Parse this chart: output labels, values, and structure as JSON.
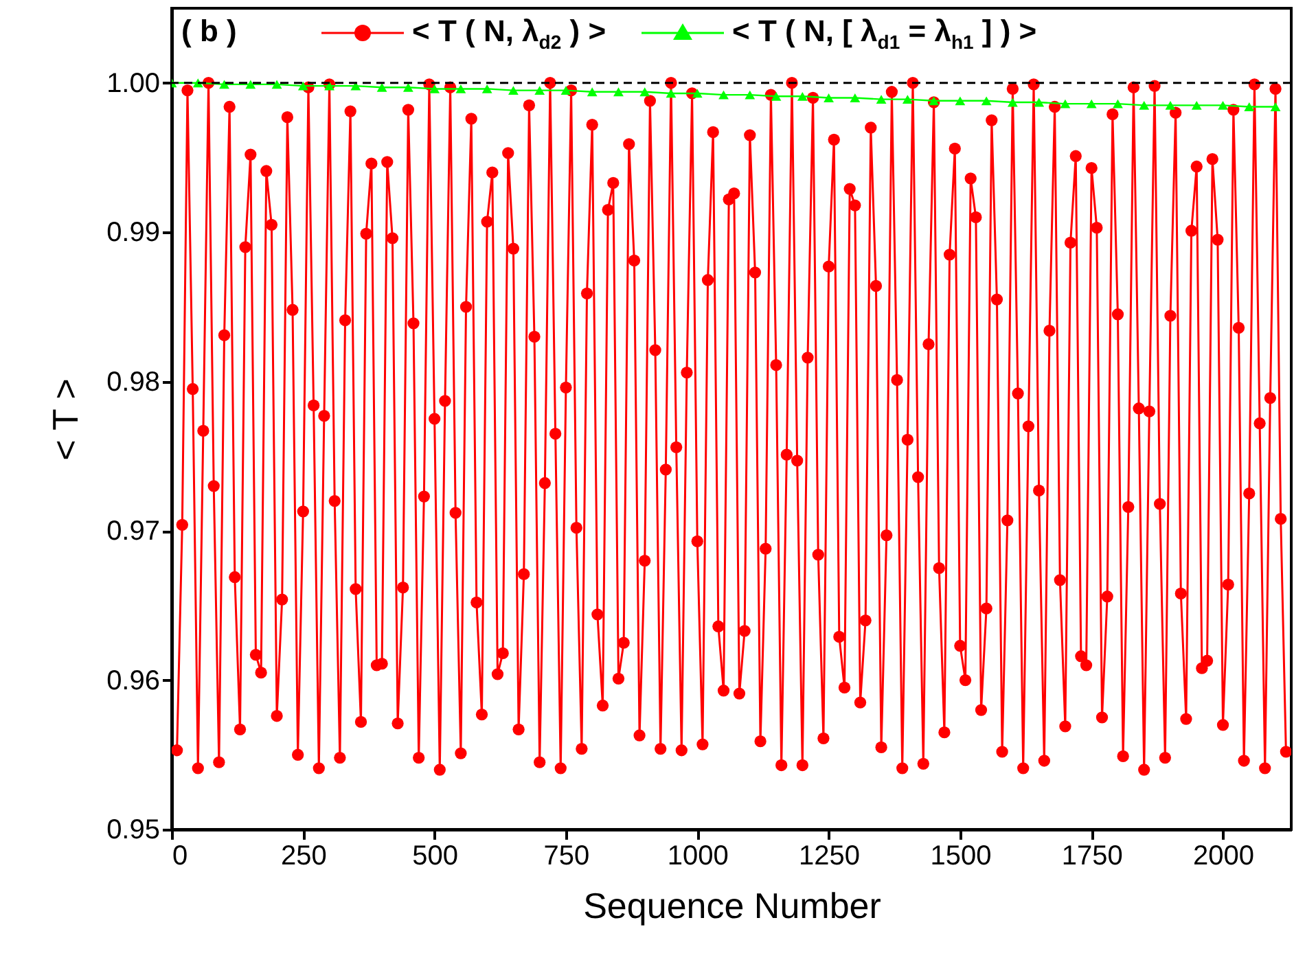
{
  "chart_data": {
    "type": "line",
    "xlabel": "Sequence Number",
    "ylabel": "< T >",
    "annotations": [
      "( b )"
    ],
    "xlim": [
      0,
      2130
    ],
    "xticks": [
      0,
      250,
      500,
      750,
      1000,
      1250,
      1500,
      1750,
      2000
    ],
    "ylim": [
      0.95,
      1.005
    ],
    "yticks": [
      0.95,
      0.96,
      0.97,
      0.98,
      0.99,
      {
        "value": 1,
        "label": "1.00"
      }
    ],
    "grid": false,
    "legend": "top",
    "marker": "circle",
    "line_style": "solid",
    "ref_lines": [
      {
        "axis": "y",
        "value": 1,
        "color": "#000000",
        "line_style": "dashed"
      }
    ],
    "series": [
      {
        "name": "< T ( N, λ$_{d2}$ ) >",
        "color": "#ff0000",
        "x": [
          10,
          20,
          30,
          40,
          50,
          60,
          70,
          80,
          90,
          100,
          110,
          120,
          130,
          140,
          150,
          160,
          170,
          180,
          190,
          200,
          210,
          220,
          230,
          240,
          250,
          260,
          270,
          280,
          290,
          300,
          310,
          320,
          330,
          340,
          350,
          360,
          370,
          380,
          390,
          400,
          410,
          420,
          430,
          440,
          450,
          460,
          470,
          480,
          490,
          500,
          510,
          520,
          530,
          540,
          550,
          560,
          570,
          580,
          590,
          600,
          610,
          620,
          630,
          640,
          650,
          660,
          670,
          680,
          690,
          700,
          710,
          720,
          730,
          740,
          750,
          760,
          770,
          780,
          790,
          800,
          810,
          820,
          830,
          840,
          850,
          860,
          870,
          880,
          890,
          900,
          910,
          920,
          930,
          940,
          950,
          960,
          970,
          980,
          990,
          1000,
          1010,
          1020,
          1030,
          1040,
          1050,
          1060,
          1070,
          1080,
          1090,
          1100,
          1110,
          1120,
          1130,
          1140,
          1150,
          1160,
          1170,
          1180,
          1190,
          1200,
          1210,
          1220,
          1230,
          1240,
          1250,
          1260,
          1270,
          1280,
          1290,
          1300,
          1310,
          1320,
          1330,
          1340,
          1350,
          1360,
          1370,
          1380,
          1390,
          1400,
          1410,
          1420,
          1430,
          1440,
          1450,
          1460,
          1470,
          1480,
          1490,
          1500,
          1510,
          1520,
          1530,
          1540,
          1550,
          1560,
          1570,
          1580,
          1590,
          1600,
          1610,
          1620,
          1630,
          1640,
          1650,
          1660,
          1670,
          1680,
          1690,
          1700,
          1710,
          1720,
          1730,
          1740,
          1750,
          1760,
          1770,
          1780,
          1790,
          1800,
          1810,
          1820,
          1830,
          1840,
          1850,
          1860,
          1870,
          1880,
          1890,
          1900,
          1910,
          1920,
          1930,
          1940,
          1950,
          1960,
          1970,
          1980,
          1990,
          2000,
          2010,
          2020,
          2030,
          2040,
          2050,
          2060,
          2070,
          2080,
          2090,
          2100,
          2110,
          2120
        ],
        "values": [
          0.9553,
          0.9704,
          0.9995,
          0.9795,
          0.9541,
          0.9767,
          1.0,
          0.973,
          0.9545,
          0.9831,
          0.9984,
          0.9669,
          0.9567,
          0.989,
          0.9952,
          0.9617,
          0.9605,
          0.9941,
          0.9905,
          0.9576,
          0.9654,
          0.9977,
          0.9848,
          0.955,
          0.9713,
          0.9997,
          0.9784,
          0.9541,
          0.9777,
          0.9999,
          0.972,
          0.9548,
          0.9841,
          0.9981,
          0.9661,
          0.9572,
          0.9899,
          0.9946,
          0.961,
          0.9611,
          0.9947,
          0.9896,
          0.9571,
          0.9662,
          0.9982,
          0.9839,
          0.9548,
          0.9723,
          0.9999,
          0.9775,
          0.954,
          0.9787,
          0.9997,
          0.9712,
          0.9551,
          0.985,
          0.9976,
          0.9652,
          0.9577,
          0.9907,
          0.994,
          0.9604,
          0.9618,
          0.9953,
          0.9889,
          0.9567,
          0.9671,
          0.9985,
          0.983,
          0.9545,
          0.9732,
          1.0,
          0.9765,
          0.9541,
          0.9796,
          0.9995,
          0.9702,
          0.9554,
          0.9859,
          0.9972,
          0.9644,
          0.9583,
          0.9915,
          0.9933,
          0.9601,
          0.9625,
          0.9959,
          0.9881,
          0.9563,
          0.968,
          0.9988,
          0.9821,
          0.9554,
          0.9741,
          1.0,
          0.9756,
          0.9553,
          0.9806,
          0.9993,
          0.9693,
          0.9557,
          0.9868,
          0.9967,
          0.9636,
          0.9593,
          0.9922,
          0.9926,
          0.9591,
          0.9633,
          0.9965,
          0.9873,
          0.9559,
          0.9688,
          0.9992,
          0.9811,
          0.9543,
          0.9751,
          1.0,
          0.9747,
          0.9543,
          0.9816,
          0.999,
          0.9684,
          0.9561,
          0.9877,
          0.9962,
          0.9629,
          0.9595,
          0.9929,
          0.9918,
          0.9585,
          0.964,
          0.997,
          0.9864,
          0.9555,
          0.9697,
          0.9994,
          0.9801,
          0.9541,
          0.9761,
          1.0,
          0.9736,
          0.9544,
          0.9825,
          0.9987,
          0.9675,
          0.9565,
          0.9885,
          0.9956,
          0.9623,
          0.96,
          0.9936,
          0.991,
          0.958,
          0.9648,
          0.9975,
          0.9855,
          0.9552,
          0.9707,
          0.9996,
          0.9792,
          0.9541,
          0.977,
          0.9999,
          0.9727,
          0.9546,
          0.9834,
          0.9984,
          0.9667,
          0.9569,
          0.9893,
          0.9951,
          0.9616,
          0.961,
          0.9943,
          0.9903,
          0.9575,
          0.9656,
          0.9979,
          0.9845,
          0.9549,
          0.9716,
          0.9997,
          0.9782,
          0.954,
          0.978,
          0.9998,
          0.9718,
          0.9548,
          0.9844,
          0.998,
          0.9658,
          0.9574,
          0.9901,
          0.9944,
          0.9608,
          0.9613,
          0.9949,
          0.9895,
          0.957,
          0.9664,
          0.9982,
          0.9836,
          0.9546,
          0.9725,
          0.9999,
          0.9772,
          0.9541,
          0.9789,
          0.9996,
          0.9708,
          0.9552
        ]
      },
      {
        "name": "< T ( N, [ λ$_{d1}$ = λ$_{h1}$ ] ) >",
        "color": "#00ff00",
        "marker": "triangle",
        "x": [
          0,
          50,
          100,
          150,
          200,
          250,
          300,
          350,
          400,
          450,
          500,
          550,
          600,
          650,
          700,
          750,
          800,
          850,
          900,
          950,
          1000,
          1050,
          1100,
          1150,
          1200,
          1250,
          1300,
          1350,
          1400,
          1450,
          1500,
          1550,
          1600,
          1650,
          1700,
          1750,
          1800,
          1850,
          1900,
          1950,
          2000,
          2050,
          2100
        ],
        "values": [
          1.0,
          1.0,
          0.9999,
          0.9999,
          0.9999,
          0.9998,
          0.9998,
          0.9998,
          0.9997,
          0.9997,
          0.9996,
          0.9996,
          0.9996,
          0.9995,
          0.9995,
          0.9995,
          0.9994,
          0.9994,
          0.9994,
          0.9993,
          0.9993,
          0.9992,
          0.9992,
          0.9991,
          0.9991,
          0.999,
          0.999,
          0.9989,
          0.9989,
          0.9988,
          0.9988,
          0.9988,
          0.9987,
          0.9987,
          0.9986,
          0.9986,
          0.9986,
          0.9985,
          0.9985,
          0.9985,
          0.9985,
          0.9984,
          0.9984
        ]
      }
    ]
  }
}
